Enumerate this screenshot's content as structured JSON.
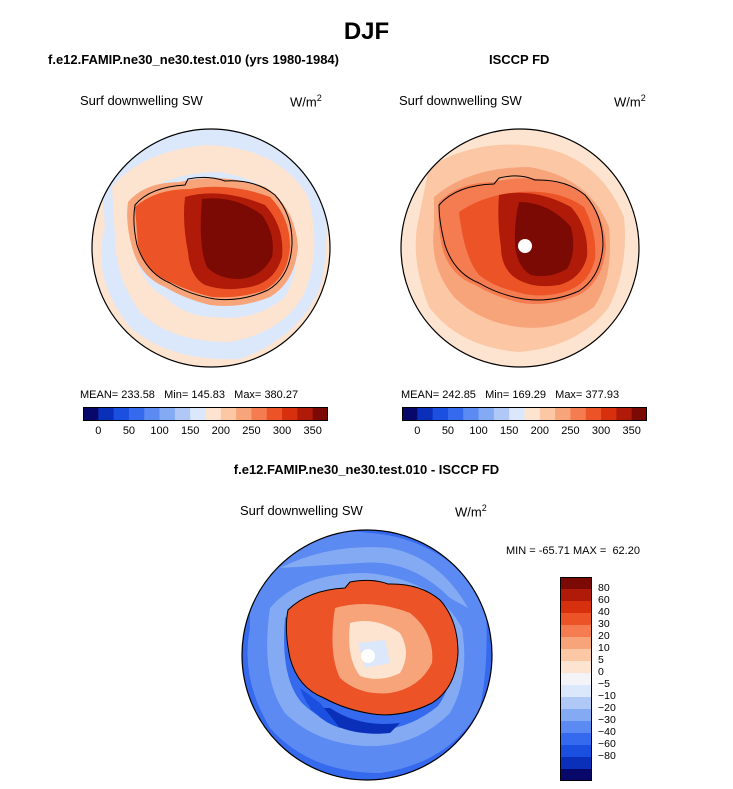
{
  "figure": {
    "title": "DJF"
  },
  "panels": [
    {
      "id": "model",
      "title": "f.e12.FAMIP.ne30_ne30.test.010 (yrs 1980-1984)",
      "variable": "Surf downwelling SW",
      "units_base": "W/m",
      "units_exp": "2",
      "stats": {
        "mean_label": "MEAN=",
        "mean": "233.58",
        "min_label": "Min=",
        "min": "145.83",
        "max_label": "Max=",
        "max": "380.27"
      }
    },
    {
      "id": "obs",
      "title": "ISCCP FD",
      "variable": "Surf downwelling SW",
      "units_base": "W/m",
      "units_exp": "2",
      "stats": {
        "mean_label": "MEAN=",
        "mean": "242.85",
        "min_label": "Min=",
        "min": "169.29",
        "max_label": "Max=",
        "max": "377.93"
      }
    },
    {
      "id": "diff",
      "title": "f.e12.FAMIP.ne30_ne30.test.010 - ISCCP FD",
      "variable": "Surf downwelling SW",
      "units_base": "W/m",
      "units_exp": "2",
      "stats": {
        "min_label": "MIN =",
        "min": "-65.71",
        "max_label": "MAX =",
        "max": "62.20"
      }
    }
  ],
  "colorbars": {
    "absolute": {
      "colors": [
        "#08086b",
        "#0a2fb8",
        "#1a4fe0",
        "#3569ee",
        "#5b8af2",
        "#85aaf4",
        "#afc8f6",
        "#dbe7fb",
        "#fde4d0",
        "#fbc7a4",
        "#f8a47a",
        "#f47c50",
        "#ec5428",
        "#d6300f",
        "#b01a08",
        "#7c0a04"
      ],
      "ticks": [
        "0",
        "50",
        "100",
        "150",
        "200",
        "250",
        "300",
        "350"
      ]
    },
    "difference": {
      "colors": [
        "#7c0a04",
        "#b01a08",
        "#d6300f",
        "#ec5428",
        "#f47c50",
        "#f8a47a",
        "#fbc7a4",
        "#fde4d0",
        "#f4f4f8",
        "#dbe7fb",
        "#afc8f6",
        "#85aaf4",
        "#5b8af2",
        "#3569ee",
        "#1a4fe0",
        "#0a2fb8",
        "#08086b"
      ],
      "ticks": [
        "80",
        "60",
        "40",
        "30",
        "20",
        "10",
        "5",
        "0",
        "−5",
        "−10",
        "−20",
        "−30",
        "−40",
        "−60",
        "−80"
      ]
    }
  },
  "chart_data": [
    {
      "type": "heatmap",
      "projection": "south-polar-stereographic",
      "title": "f.e12.FAMIP.ne30_ne30.test.010 (yrs 1980-1984)",
      "variable": "Surf downwelling SW",
      "units": "W/m^2",
      "mean": 233.58,
      "min": 145.83,
      "max": 380.27,
      "colorbar_ticks": [
        0,
        50,
        100,
        150,
        200,
        250,
        300,
        350
      ]
    },
    {
      "type": "heatmap",
      "projection": "south-polar-stereographic",
      "title": "ISCCP FD",
      "variable": "Surf downwelling SW",
      "units": "W/m^2",
      "mean": 242.85,
      "min": 169.29,
      "max": 377.93,
      "colorbar_ticks": [
        0,
        50,
        100,
        150,
        200,
        250,
        300,
        350
      ]
    },
    {
      "type": "heatmap",
      "projection": "south-polar-stereographic",
      "title": "f.e12.FAMIP.ne30_ne30.test.010 - ISCCP FD",
      "variable": "Surf downwelling SW",
      "units": "W/m^2",
      "min": -65.71,
      "max": 62.2,
      "colorbar_ticks": [
        80,
        60,
        40,
        30,
        20,
        10,
        5,
        0,
        -5,
        -10,
        -20,
        -30,
        -40,
        -60,
        -80
      ]
    }
  ]
}
